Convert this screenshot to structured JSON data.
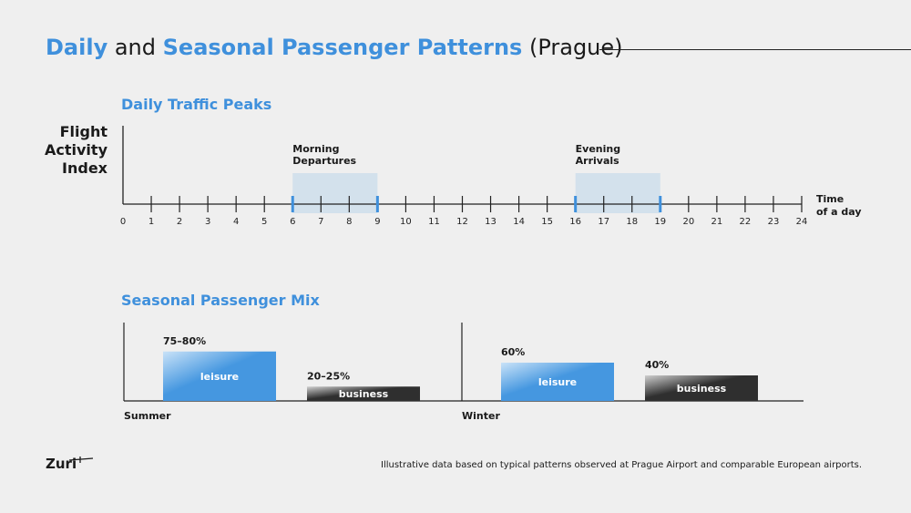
{
  "title": {
    "part1": "Daily",
    "part2": " and ",
    "part3": "Seasonal Passenger Patterns",
    "part4": " (Prague)"
  },
  "colors": {
    "accent": "#3f90dc",
    "band": "#d3e1ec",
    "leisure": "#4597e0",
    "business": "#2f2f2f",
    "axis": "#222222"
  },
  "footnote": "Illustrative data based on typical patterns observed at Prague Airport and comparable European airports.",
  "logo": "Zuri",
  "chart_data": [
    {
      "type": "timeline",
      "title": "Daily Traffic Peaks",
      "ylabel": "Flight Activity Index",
      "xlabel_lines": [
        "Time",
        "of a day"
      ],
      "xlim": [
        0,
        24
      ],
      "ticks": [
        "0",
        "1",
        "2",
        "3",
        "4",
        "5",
        "6",
        "7",
        "8",
        "9",
        "10",
        "11",
        "12",
        "13",
        "14",
        "15",
        "16",
        "17",
        "18",
        "19",
        "20",
        "21",
        "22",
        "23",
        "24"
      ],
      "peaks": [
        {
          "label_lines": [
            "Morning",
            "Departures"
          ],
          "start": 6,
          "end": 9
        },
        {
          "label_lines": [
            "Evening",
            "Arrivals"
          ],
          "start": 16,
          "end": 19
        }
      ]
    },
    {
      "type": "bar",
      "title": "Seasonal Passenger Mix",
      "groups": [
        {
          "name": "Summer",
          "bars": [
            {
              "name": "leisure",
              "value": 77.5,
              "label": "75–80%"
            },
            {
              "name": "business",
              "value": 22.5,
              "label": "20–25%"
            }
          ]
        },
        {
          "name": "Winter",
          "bars": [
            {
              "name": "leisure",
              "value": 60,
              "label": "60%"
            },
            {
              "name": "business",
              "value": 40,
              "label": "40%"
            }
          ]
        }
      ],
      "ylim": [
        0,
        100
      ]
    }
  ]
}
